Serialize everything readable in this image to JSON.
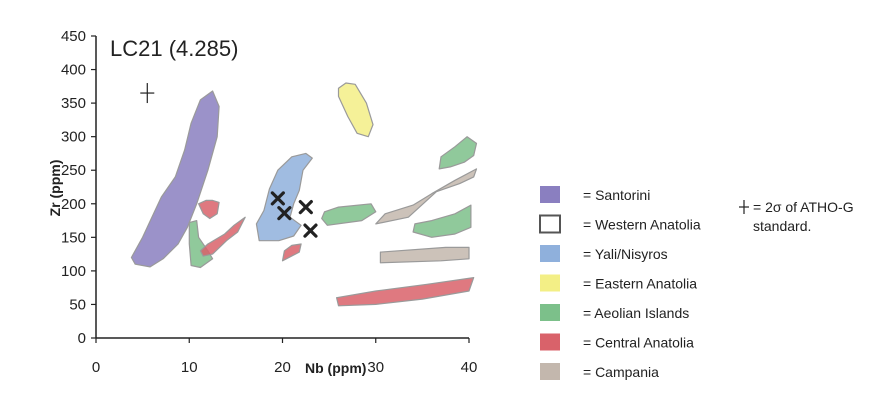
{
  "chart_data": {
    "type": "scatter",
    "title": "LC21 (4.285)",
    "xlabel": "Nb (ppm)",
    "ylabel": "Zr (ppm)",
    "xlim": [
      0,
      40
    ],
    "ylim": [
      0,
      450
    ],
    "x_ticks": [
      "0",
      "10",
      "20",
      "30",
      "40"
    ],
    "y_ticks": [
      "0",
      "50",
      "100",
      "150",
      "200",
      "250",
      "300",
      "350",
      "400",
      "450"
    ],
    "legend_position": "right",
    "series": [
      {
        "name": "= Santorini",
        "color": "#8a7fc0",
        "fields": [
          [
            [
              4.2,
              110
            ],
            [
              3.8,
              120
            ],
            [
              5.0,
              150
            ],
            [
              6.0,
              180
            ],
            [
              7.0,
              210
            ],
            [
              8.5,
              240
            ],
            [
              9.5,
              280
            ],
            [
              10.2,
              320
            ],
            [
              11.2,
              355
            ],
            [
              12.5,
              368
            ],
            [
              13.2,
              345
            ],
            [
              13.0,
              300
            ],
            [
              12.0,
              250
            ],
            [
              10.8,
              200
            ],
            [
              9.8,
              165
            ],
            [
              8.8,
              140
            ],
            [
              7.2,
              118
            ],
            [
              5.8,
              106
            ]
          ]
        ]
      },
      {
        "name": "= Western Anatolia",
        "color": "#ffffff",
        "fields": []
      },
      {
        "name": "= Yali/Nisyros",
        "color": "#8fb0dc",
        "fields": [
          [
            [
              17.5,
              145
            ],
            [
              17.2,
              170
            ],
            [
              18.0,
              190
            ],
            [
              18.6,
              222
            ],
            [
              19.5,
              250
            ],
            [
              21.0,
              270
            ],
            [
              22.5,
              275
            ],
            [
              23.2,
              268
            ],
            [
              22.2,
              250
            ],
            [
              21.8,
              220
            ],
            [
              21.2,
              200
            ],
            [
              20.8,
              180
            ],
            [
              22.0,
              168
            ],
            [
              21.2,
              152
            ],
            [
              19.6,
              145
            ]
          ]
        ]
      },
      {
        "name": "= Eastern Anatolia",
        "color": "#f3ef86",
        "fields": [
          [
            [
              26.0,
              372
            ],
            [
              26.0,
              360
            ],
            [
              27.0,
              330
            ],
            [
              28.0,
              305
            ],
            [
              29.2,
              300
            ],
            [
              29.7,
              318
            ],
            [
              29.0,
              350
            ],
            [
              27.8,
              378
            ],
            [
              26.8,
              380
            ]
          ]
        ]
      },
      {
        "name": "= Aeolian Islands",
        "color": "#7cc08a",
        "fields": [
          [
            [
              10.0,
              172
            ],
            [
              10.8,
              175
            ],
            [
              11.0,
              150
            ],
            [
              12.0,
              130
            ],
            [
              12.5,
              118
            ],
            [
              11.2,
              105
            ],
            [
              10.2,
              108
            ],
            [
              10.0,
              140
            ]
          ],
          [
            [
              24.2,
              178
            ],
            [
              24.8,
              168
            ],
            [
              28.5,
              175
            ],
            [
              30.0,
              188
            ],
            [
              29.5,
              200
            ],
            [
              26.0,
              195
            ],
            [
              24.5,
              188
            ]
          ],
          [
            [
              34.2,
              170
            ],
            [
              36.0,
              175
            ],
            [
              38.5,
              185
            ],
            [
              40.2,
              198
            ],
            [
              40.2,
              165
            ],
            [
              38.5,
              155
            ],
            [
              36.0,
              150
            ],
            [
              34.0,
              158
            ]
          ],
          [
            [
              36.8,
              252
            ],
            [
              37.0,
              270
            ],
            [
              38.5,
              285
            ],
            [
              39.8,
              300
            ],
            [
              40.8,
              290
            ],
            [
              40.5,
              272
            ],
            [
              39.5,
              262
            ],
            [
              38.0,
              255
            ]
          ]
        ]
      },
      {
        "name": "= Central Anatolia",
        "color": "#d9626a",
        "fields": [
          [
            [
              11.0,
              200
            ],
            [
              11.5,
              185
            ],
            [
              12.2,
              178
            ],
            [
              13.0,
              185
            ],
            [
              13.2,
              202
            ],
            [
              12.5,
              205
            ],
            [
              11.8,
              205
            ]
          ],
          [
            [
              11.2,
              130
            ],
            [
              12.0,
              140
            ],
            [
              13.8,
              155
            ],
            [
              14.8,
              168
            ],
            [
              15.5,
              175
            ],
            [
              16.0,
              180
            ],
            [
              15.2,
              158
            ],
            [
              14.0,
              145
            ],
            [
              12.5,
              125
            ],
            [
              11.5,
              122
            ]
          ],
          [
            [
              20.0,
              115
            ],
            [
              21.8,
              128
            ],
            [
              22.0,
              140
            ],
            [
              21.0,
              138
            ],
            [
              20.2,
              130
            ]
          ],
          [
            [
              26.0,
              48
            ],
            [
              25.8,
              60
            ],
            [
              30.0,
              70
            ],
            [
              35.5,
              80
            ],
            [
              40.5,
              90
            ],
            [
              40.0,
              70
            ],
            [
              35.0,
              58
            ],
            [
              30.0,
              50
            ]
          ]
        ]
      },
      {
        "name": "= Campania",
        "color": "#c3b7ad",
        "fields": [
          [
            [
              30.0,
              170
            ],
            [
              31.0,
              185
            ],
            [
              34.0,
              198
            ],
            [
              36.0,
              215
            ],
            [
              38.5,
              235
            ],
            [
              40.8,
              252
            ],
            [
              40.5,
              240
            ],
            [
              39.0,
              230
            ],
            [
              36.5,
              218
            ],
            [
              33.5,
              180
            ]
          ],
          [
            [
              30.5,
              112
            ],
            [
              30.5,
              128
            ],
            [
              37.5,
              135
            ],
            [
              40.0,
              135
            ],
            [
              40.0,
              118
            ],
            [
              37.0,
              115
            ]
          ]
        ]
      }
    ],
    "crosses": [
      {
        "x": 19.5,
        "y": 208
      },
      {
        "x": 20.2,
        "y": 186
      },
      {
        "x": 22.5,
        "y": 195
      },
      {
        "x": 23.0,
        "y": 160
      }
    ],
    "error_bar": {
      "x": 5.5,
      "y": 365
    },
    "legend_note": "= 2σ of ATHO-G",
    "legend_note_2": "standard."
  }
}
